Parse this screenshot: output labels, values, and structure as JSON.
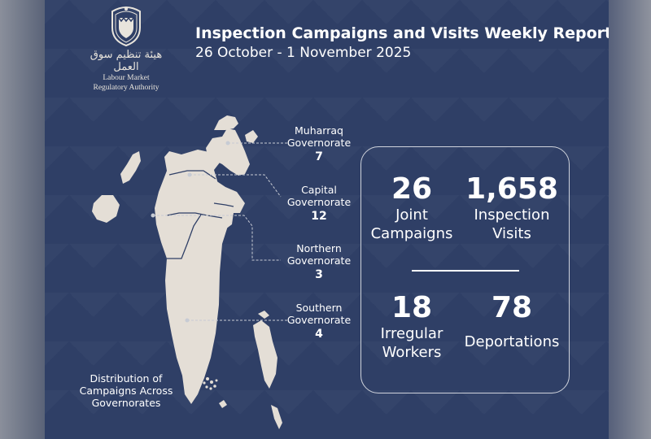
{
  "header": {
    "title": "Inspection Campaigns and Visits Weekly Report",
    "date_range": "26 October - 1 November 2025"
  },
  "logo": {
    "arabic_name": "هيئة تنظيم سوق العمل",
    "english_line1": "Labour Market",
    "english_line2": "Regulatory Authority"
  },
  "map": {
    "governorates": [
      {
        "name_line1": "Muharraq",
        "name_line2": "Governorate",
        "count": "7"
      },
      {
        "name_line1": "Capital",
        "name_line2": "Governorate",
        "count": "12"
      },
      {
        "name_line1": "Northern",
        "name_line2": "Governorate",
        "count": "3"
      },
      {
        "name_line1": "Southern",
        "name_line2": "Governorate",
        "count": "4"
      }
    ],
    "caption_line1": "Distribution of",
    "caption_line2": "Campaigns Across",
    "caption_line3": "Governorates"
  },
  "stats": {
    "joint_campaigns": {
      "value": "26",
      "label_line1": "Joint",
      "label_line2": "Campaigns"
    },
    "inspection_visits": {
      "value": "1,658",
      "label_line1": "Inspection",
      "label_line2": "Visits"
    },
    "irregular_workers": {
      "value": "18",
      "label_line1": "Irregular",
      "label_line2": "Workers"
    },
    "deportations": {
      "value": "78",
      "label_line1": "Deportations"
    }
  },
  "colors": {
    "background": "#2f3f66",
    "land": "#e4ded6",
    "text": "#ffffff"
  }
}
